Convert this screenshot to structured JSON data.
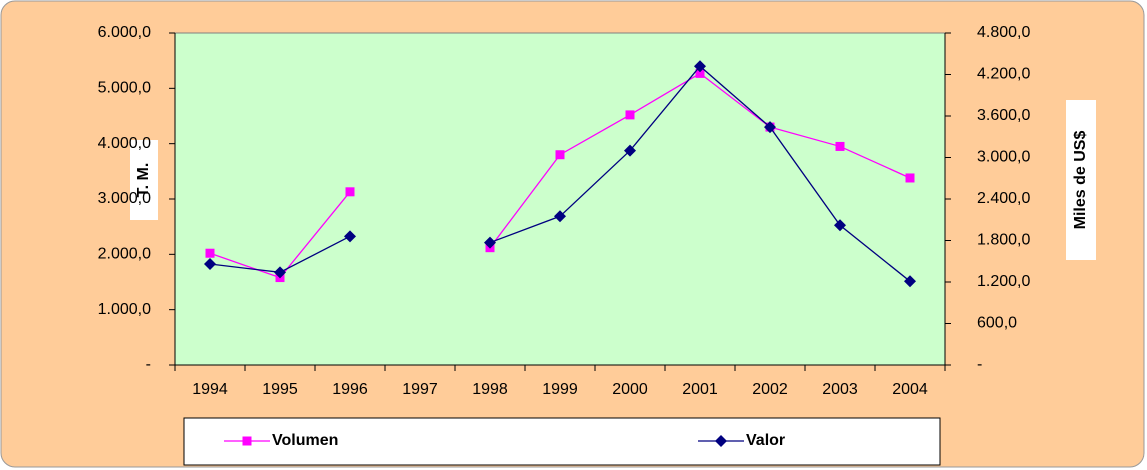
{
  "chart_data": {
    "type": "line",
    "categories": [
      "1994",
      "1995",
      "1996",
      "1997",
      "1998",
      "1999",
      "2000",
      "2001",
      "2002",
      "2003",
      "2004"
    ],
    "ylabel": "T. M.",
    "y2label": "Miles de US$",
    "ylim": [
      0,
      6000
    ],
    "yticks": [
      {
        "value": 0,
        "label": "-"
      },
      {
        "value": 1000,
        "label": "1.000,0"
      },
      {
        "value": 2000,
        "label": "2.000,0"
      },
      {
        "value": 3000,
        "label": "3.000,0"
      },
      {
        "value": 4000,
        "label": "4.000,0"
      },
      {
        "value": 5000,
        "label": "5.000,0"
      },
      {
        "value": 6000,
        "label": "6.000,0"
      }
    ],
    "y2lim": [
      0,
      4800
    ],
    "y2ticks": [
      {
        "value": 0,
        "label": "-"
      },
      {
        "value": 600,
        "label": "600,0"
      },
      {
        "value": 1200,
        "label": "1.200,0"
      },
      {
        "value": 1800,
        "label": "1.800,0"
      },
      {
        "value": 2400,
        "label": "2.400,0"
      },
      {
        "value": 3000,
        "label": "3.000,0"
      },
      {
        "value": 3600,
        "label": "3.600,0"
      },
      {
        "value": 4200,
        "label": "4.200,0"
      },
      {
        "value": 4800,
        "label": "4.800,0"
      }
    ],
    "legend": "bottom",
    "series": [
      {
        "name": "Volumen",
        "color": "#ff00ff",
        "marker": "square",
        "axis": "y",
        "values": [
          2020,
          1580,
          3130,
          null,
          2120,
          3800,
          4520,
          5270,
          4300,
          3950,
          3380
        ]
      },
      {
        "name": "Valor",
        "color": "#000080",
        "marker": "diamond",
        "axis": "y2",
        "values": [
          1460,
          1340,
          1860,
          null,
          1770,
          2150,
          3100,
          4320,
          3440,
          2020,
          1210
        ]
      }
    ]
  }
}
